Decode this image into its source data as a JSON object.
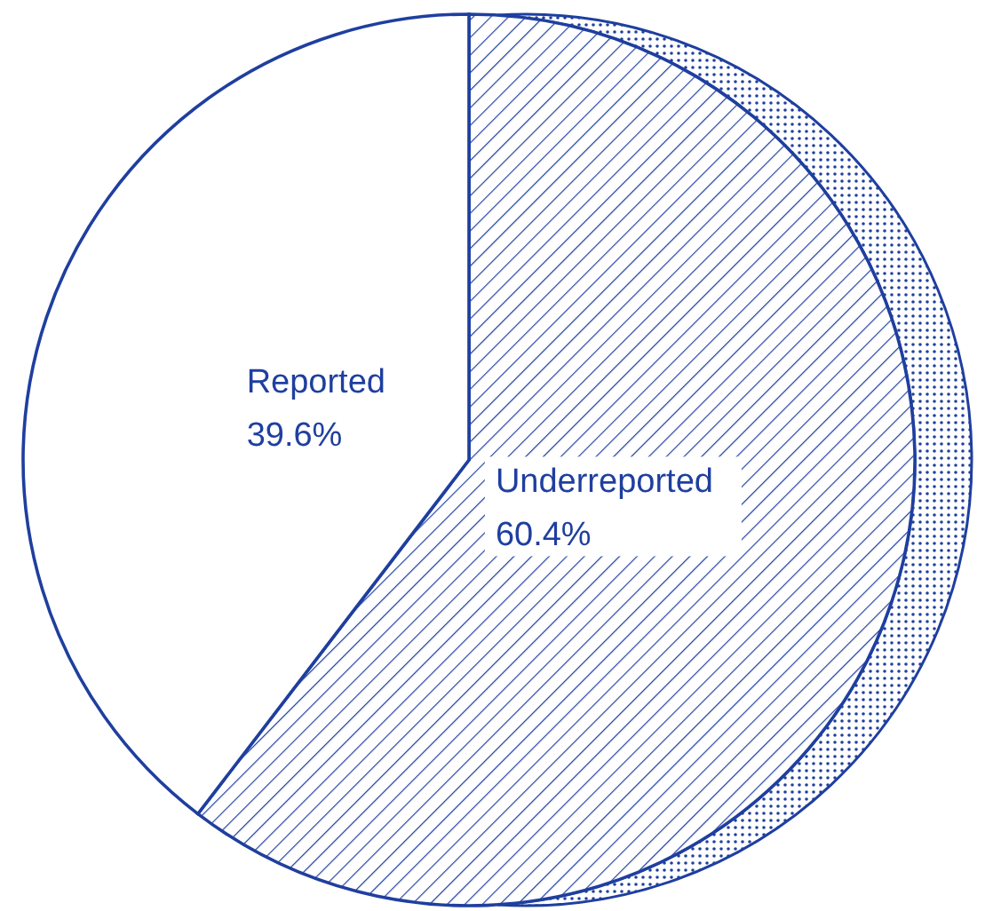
{
  "chart_data": {
    "type": "pie",
    "categories": [
      "Underreported",
      "Reported"
    ],
    "values": [
      60.4,
      39.6
    ],
    "value_labels": [
      "60.4%",
      "39.6%"
    ],
    "colors": [
      "#1f3f9f",
      "#ffffff"
    ]
  }
}
